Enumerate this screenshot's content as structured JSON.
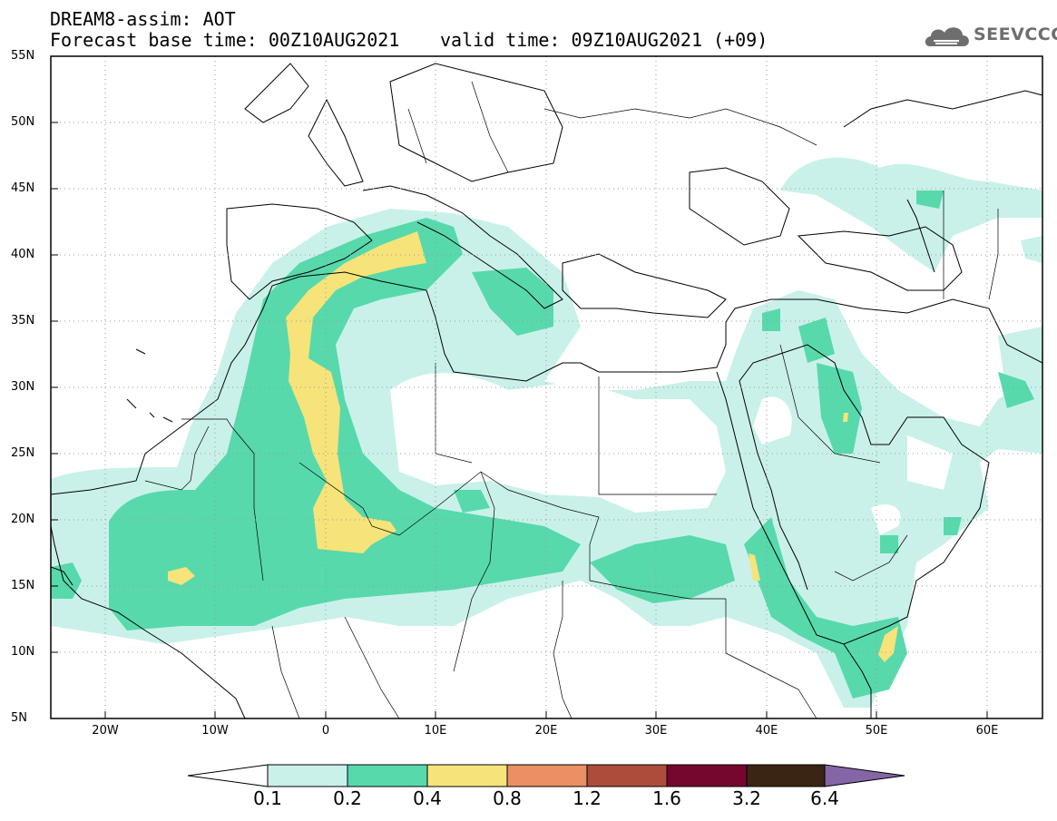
{
  "header": {
    "title_line1": "DREAM8-assim: AOT",
    "title_line2": "Forecast base time: 00Z10AUG2021",
    "valid_time": "valid time: 09Z10AUG2021 (+09)"
  },
  "logo": {
    "text": "SEEVCCC",
    "icon": "cloud-icon"
  },
  "map": {
    "lat_labels": [
      "55N",
      "50N",
      "45N",
      "40N",
      "35N",
      "30N",
      "25N",
      "20N",
      "15N",
      "10N",
      "5N"
    ],
    "lon_labels": [
      "20W",
      "10W",
      "0",
      "10E",
      "20E",
      "30E",
      "40E",
      "50E",
      "60E"
    ],
    "grid": "dotted",
    "variable": "Aerosol optical thickness"
  },
  "colorbar": {
    "levels": [
      "0.1",
      "0.2",
      "0.4",
      "0.8",
      "1.2",
      "1.6",
      "3.2",
      "6.4"
    ],
    "colors": [
      "#ffffff",
      "#c9f1ea",
      "#57d9ac",
      "#f6e37a",
      "#eb8f64",
      "#ae4c3b",
      "#75072f",
      "#3a2514",
      "#8466a6"
    ]
  }
}
